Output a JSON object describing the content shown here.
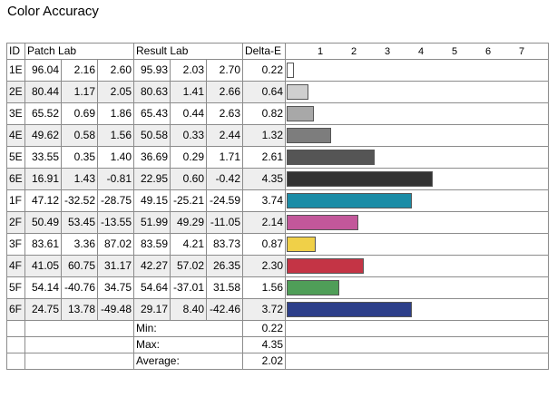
{
  "title": "Color Accuracy",
  "headers": {
    "id": "ID",
    "patch": "Patch Lab",
    "result": "Result Lab",
    "delta": "Delta-E"
  },
  "axis": {
    "ticks": [
      "1",
      "2",
      "3",
      "4",
      "5",
      "6",
      "7"
    ],
    "max": 7
  },
  "rows": [
    {
      "id": "1E",
      "p": [
        "96.04",
        "2.16",
        "2.60"
      ],
      "r": [
        "95.93",
        "2.03",
        "2.70"
      ],
      "de": "0.22",
      "color": "#ffffff"
    },
    {
      "id": "2E",
      "p": [
        "80.44",
        "1.17",
        "2.05"
      ],
      "r": [
        "80.63",
        "1.41",
        "2.66"
      ],
      "de": "0.64",
      "color": "#cfcfcf"
    },
    {
      "id": "3E",
      "p": [
        "65.52",
        "0.69",
        "1.86"
      ],
      "r": [
        "65.43",
        "0.44",
        "2.63"
      ],
      "de": "0.82",
      "color": "#a8a8a8"
    },
    {
      "id": "4E",
      "p": [
        "49.62",
        "0.58",
        "1.56"
      ],
      "r": [
        "50.58",
        "0.33",
        "2.44"
      ],
      "de": "1.32",
      "color": "#7d7d7d"
    },
    {
      "id": "5E",
      "p": [
        "33.55",
        "0.35",
        "1.40"
      ],
      "r": [
        "36.69",
        "0.29",
        "1.71"
      ],
      "de": "2.61",
      "color": "#555555"
    },
    {
      "id": "6E",
      "p": [
        "16.91",
        "1.43",
        "-0.81"
      ],
      "r": [
        "22.95",
        "0.60",
        "-0.42"
      ],
      "de": "4.35",
      "color": "#333333"
    },
    {
      "id": "1F",
      "p": [
        "47.12",
        "-32.52",
        "-28.75"
      ],
      "r": [
        "49.15",
        "-25.21",
        "-24.59"
      ],
      "de": "3.74",
      "color": "#1b8ca6"
    },
    {
      "id": "2F",
      "p": [
        "50.49",
        "53.45",
        "-13.55"
      ],
      "r": [
        "51.99",
        "49.29",
        "-11.05"
      ],
      "de": "2.14",
      "color": "#c2579a"
    },
    {
      "id": "3F",
      "p": [
        "83.61",
        "3.36",
        "87.02"
      ],
      "r": [
        "83.59",
        "4.21",
        "83.73"
      ],
      "de": "0.87",
      "color": "#f0d048"
    },
    {
      "id": "4F",
      "p": [
        "41.05",
        "60.75",
        "31.17"
      ],
      "r": [
        "42.27",
        "57.02",
        "26.35"
      ],
      "de": "2.30",
      "color": "#c43445"
    },
    {
      "id": "5F",
      "p": [
        "54.14",
        "-40.76",
        "34.75"
      ],
      "r": [
        "54.64",
        "-37.01",
        "31.58"
      ],
      "de": "1.56",
      "color": "#4f9e58"
    },
    {
      "id": "6F",
      "p": [
        "24.75",
        "13.78",
        "-49.48"
      ],
      "r": [
        "29.17",
        "8.40",
        "-42.46"
      ],
      "de": "3.72",
      "color": "#2d3f8a"
    }
  ],
  "summary": [
    {
      "label": "Min:",
      "value": "0.22"
    },
    {
      "label": "Max:",
      "value": "4.35"
    },
    {
      "label": "Average:",
      "value": "2.02"
    }
  ]
}
